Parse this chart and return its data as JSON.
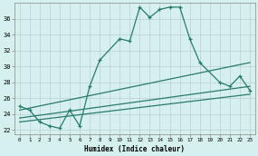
{
  "xlabel": "Humidex (Indice chaleur)",
  "background_color": "#d6f0f0",
  "grid_color": "#b8d0d0",
  "line_color": "#2a7a6a",
  "ylim": [
    21.5,
    38.0
  ],
  "xlim": [
    -0.5,
    23.5
  ],
  "yticks": [
    22,
    24,
    26,
    28,
    30,
    32,
    34,
    36
  ],
  "xticks": [
    0,
    1,
    2,
    3,
    4,
    5,
    6,
    7,
    8,
    9,
    10,
    11,
    12,
    13,
    14,
    15,
    16,
    17,
    18,
    19,
    20,
    21,
    22,
    23
  ],
  "main_series": {
    "x": [
      0,
      1,
      2,
      3,
      4,
      5,
      6,
      7,
      8,
      10,
      11,
      12,
      13,
      14,
      15,
      16,
      17,
      18,
      20,
      21,
      22,
      23
    ],
    "y": [
      25.0,
      24.5,
      23.0,
      22.5,
      22.2,
      24.5,
      22.5,
      27.5,
      30.8,
      33.5,
      33.2,
      37.5,
      36.2,
      37.2,
      37.5,
      37.5,
      33.5,
      30.5,
      28.0,
      27.5,
      28.8,
      27.0
    ]
  },
  "ref_lines": [
    {
      "x": [
        0,
        23
      ],
      "y": [
        24.5,
        30.5
      ]
    },
    {
      "x": [
        0,
        23
      ],
      "y": [
        23.5,
        27.5
      ]
    },
    {
      "x": [
        0,
        23
      ],
      "y": [
        23.0,
        26.5
      ]
    }
  ]
}
